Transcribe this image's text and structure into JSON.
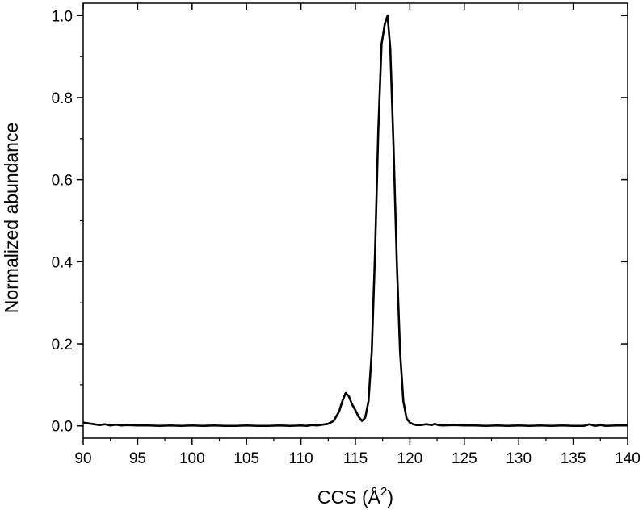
{
  "chart_data": {
    "type": "line",
    "title": "",
    "xlabel": "CCS (Å",
    "xlabel_sup": "2",
    "xlabel_close": ")",
    "ylabel": "Normalized abundance",
    "xlim": [
      90,
      140
    ],
    "ylim": [
      -0.03,
      1.03
    ],
    "xticks": [
      90,
      95,
      100,
      105,
      110,
      115,
      120,
      125,
      130,
      135,
      140
    ],
    "yticks": [
      0.0,
      0.2,
      0.4,
      0.6,
      0.8,
      1.0
    ],
    "ytick_labels": [
      "0.0",
      "0.2",
      "0.4",
      "0.6",
      "0.8",
      "1.0"
    ],
    "grid": false,
    "line_color": "#000000",
    "series": [
      {
        "x": [
          90,
          90.5,
          91,
          91.5,
          92,
          92.5,
          93,
          93.5,
          94,
          95,
          96,
          97,
          98,
          99,
          100,
          101,
          102,
          103,
          104,
          105,
          106,
          107,
          108,
          109,
          110,
          110.5,
          111,
          111.5,
          112,
          112.5,
          113,
          113.5,
          113.8,
          114.1,
          114.4,
          114.7,
          115.0,
          115.3,
          115.6,
          115.9,
          116.2,
          116.5,
          116.8,
          117.1,
          117.4,
          117.7,
          117.95,
          118.2,
          118.5,
          118.8,
          119.1,
          119.4,
          119.7,
          120.0,
          120.3,
          120.6,
          121.0,
          121.5,
          122.0,
          122.3,
          122.6,
          123,
          124,
          125,
          126,
          127,
          128,
          129,
          130,
          131,
          132,
          133,
          134,
          135,
          136,
          136.5,
          137,
          137.5,
          138,
          139,
          140
        ],
        "y": [
          0.008,
          0.006,
          0.004,
          0.002,
          0.004,
          0.001,
          0.003,
          0.001,
          0.002,
          0.001,
          0.001,
          0.0,
          0.001,
          0.0,
          0.001,
          0.0,
          0.001,
          0.0,
          0.0,
          0.001,
          0.0,
          0.0,
          0.001,
          0.0,
          0.001,
          0.0,
          0.002,
          0.001,
          0.003,
          0.005,
          0.012,
          0.035,
          0.06,
          0.08,
          0.072,
          0.052,
          0.038,
          0.022,
          0.012,
          0.02,
          0.06,
          0.18,
          0.42,
          0.72,
          0.93,
          0.98,
          1.0,
          0.92,
          0.68,
          0.4,
          0.18,
          0.06,
          0.018,
          0.008,
          0.004,
          0.002,
          0.002,
          0.004,
          0.002,
          0.005,
          0.002,
          0.001,
          0.002,
          0.001,
          0.001,
          0.0,
          0.001,
          0.0,
          0.001,
          0.0,
          0.001,
          0.0,
          0.001,
          0.0,
          0.0,
          0.004,
          0.0,
          0.002,
          0.0,
          0.001,
          0.001
        ]
      }
    ]
  }
}
